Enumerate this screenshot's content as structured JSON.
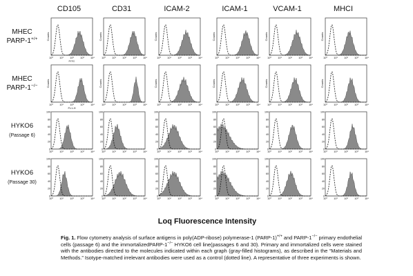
{
  "columns": [
    "CD105",
    "CD31",
    "ICAM-2",
    "ICAM-1",
    "VCAM-1",
    "MHCI"
  ],
  "rows": [
    {
      "line1": "MHEC",
      "line2": "PARP-1",
      "sup": "+/+"
    },
    {
      "line1": "MHEC",
      "line2": "PARP-1",
      "sup": "−/−"
    },
    {
      "line1": "HYKO6",
      "line2": "(Passage 6)"
    },
    {
      "line1": "HYKO6",
      "line2": "(Passage 30)"
    }
  ],
  "panel_labels": {
    "counts": "Counts",
    "fitc": "FITC",
    "fl1h": "FL1-H"
  },
  "x_ticks": [
    "10⁰",
    "10¹",
    "10²",
    "10³",
    "10⁴"
  ],
  "y_ticks": [
    "0",
    "20",
    "40",
    "60",
    "80",
    "100"
  ],
  "axis_title": "Loq Fluorescence Intensity",
  "caption": {
    "label": "Fig. 1.",
    "t1": "Flow cytometry analysis of surface antigens in poly(ADP-ribose) polymerase-1 (PARP-1)",
    "s1": "+/+",
    "t2": "and PARP-1",
    "s2": "−/−",
    "t3": "primary endothelial cells (passage 6) and the immortalizedPARP-1",
    "s3": "−/−",
    "t4": "HYKO6 cell line(passages 6 and 30). Primary and immortalized cells were stained with the antibodies directed to the molecules indicated within each graph (gray-filled histograms), as described in the “Materials and Methods.” Isotype-matched irrelevant antibodies were used as a control (dotted line). A representative of three experiments is shown."
  }
}
